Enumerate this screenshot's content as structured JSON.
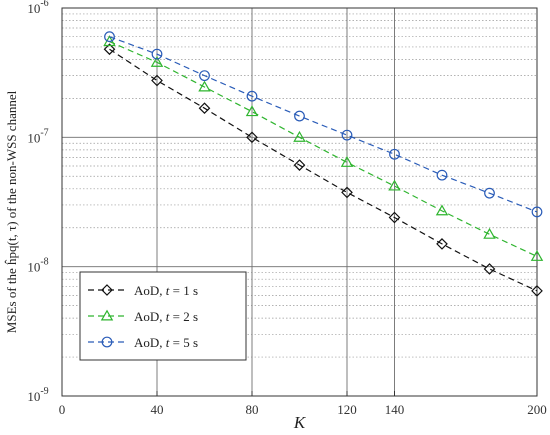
{
  "chart_data": {
    "type": "line",
    "title": "",
    "xlabel": "K",
    "ylabel": "MSEs of the ĥpq(t, τ) of the non-WSS channel",
    "xlim": [
      0,
      200
    ],
    "ylim": [
      1e-09,
      1e-06
    ],
    "yscale": "log",
    "grid": true,
    "x_ticks": [
      0,
      40,
      80,
      120,
      140,
      200
    ],
    "x_tick_labels": [
      "0",
      "40",
      "80",
      "120",
      "140",
      "200"
    ],
    "y_ticks": [
      1e-09,
      1e-08,
      1e-07,
      1e-06
    ],
    "y_tick_labels": [
      {
        "base": "10",
        "exp": "-9"
      },
      {
        "base": "10",
        "exp": "-8"
      },
      {
        "base": "10",
        "exp": "-7"
      },
      {
        "base": "10",
        "exp": "-6"
      }
    ],
    "legend_position": "bottom-left",
    "x": [
      20,
      40,
      60,
      80,
      100,
      120,
      140,
      160,
      180,
      200
    ],
    "series": [
      {
        "name": "AoD, t = 1 s",
        "label_parts": [
          "AoD, ",
          "t",
          " = 1 s"
        ],
        "color": "#111111",
        "marker": "diamond",
        "values": [
          4.8e-07,
          2.75e-07,
          1.68e-07,
          1e-07,
          6.1e-08,
          3.75e-08,
          2.4e-08,
          1.5e-08,
          9.6e-09,
          6.5e-09
        ]
      },
      {
        "name": "AoD, t = 2 s",
        "label_parts": [
          "AoD, ",
          "t",
          " = 2 s"
        ],
        "color": "#2fb52f",
        "marker": "triangle",
        "values": [
          5.5e-07,
          3.8e-07,
          2.45e-07,
          1.58e-07,
          1e-07,
          6.4e-08,
          4.2e-08,
          2.7e-08,
          1.78e-08,
          1.2e-08
        ]
      },
      {
        "name": "AoD, t = 5 s",
        "label_parts": [
          "AoD, ",
          "t",
          " = 5 s"
        ],
        "color": "#2a5cb8",
        "marker": "circle",
        "values": [
          6e-07,
          4.4e-07,
          3e-07,
          2.08e-07,
          1.46e-07,
          1.04e-07,
          7.4e-08,
          5.1e-08,
          3.7e-08,
          2.65e-08
        ]
      }
    ]
  }
}
